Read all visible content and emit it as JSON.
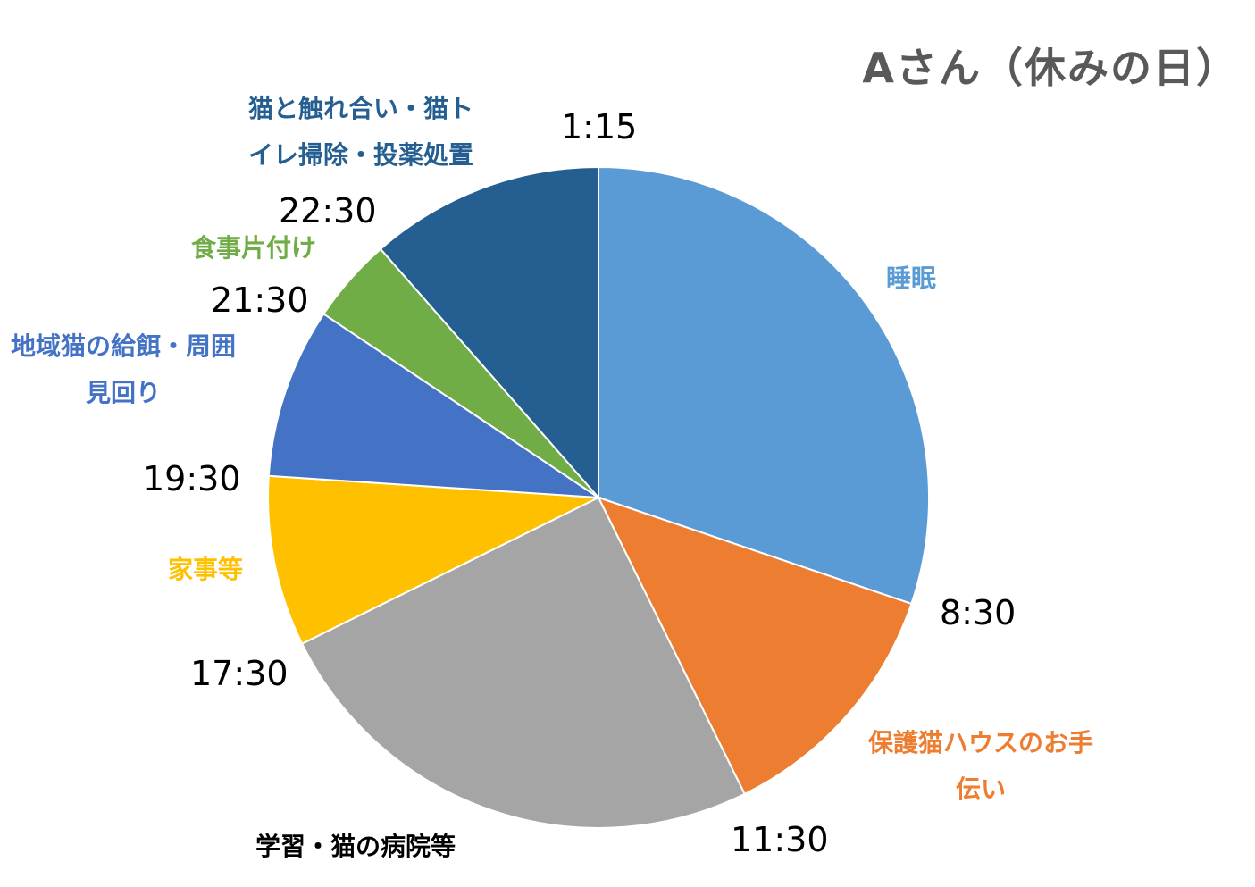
{
  "title": "Aさん（休みの日）",
  "chart_data": {
    "type": "pie",
    "title": "Aさん（休みの日）",
    "start_direction": "clockwise from 12 o'clock",
    "slices": [
      {
        "label_lines": [
          "睡眠"
        ],
        "start": "1:15",
        "end": "8:30",
        "value": 7.25,
        "color": "#5B9BD5"
      },
      {
        "label_lines": [
          "保護猫ハウスのお手",
          "伝い"
        ],
        "start": "8:30",
        "end": "11:30",
        "value": 3,
        "color": "#ED7D31"
      },
      {
        "label_lines": [
          "学習・猫の病院等"
        ],
        "start": "11:30",
        "end": "17:30",
        "value": 6,
        "color": "#A5A5A5"
      },
      {
        "label_lines": [
          "家事等"
        ],
        "start": "17:30",
        "end": "19:30",
        "value": 2,
        "color": "#FFC000"
      },
      {
        "label_lines": [
          "地域猫の給餌・周囲",
          "見回り"
        ],
        "start": "19:30",
        "end": "21:30",
        "value": 2,
        "color": "#4472C4"
      },
      {
        "label_lines": [
          "食事片付け"
        ],
        "start": "21:30",
        "end": "22:30",
        "value": 1,
        "color": "#70AD47"
      },
      {
        "label_lines": [
          "猫と触れ合い・猫ト",
          "イレ掃除・投薬処置"
        ],
        "start": "22:30",
        "end": "1:15",
        "value": 2.75,
        "color": "#255E91"
      }
    ],
    "label_colors": [
      "#5B9BD5",
      "#ED7D31",
      "#000000",
      "#FFC000",
      "#4472C4",
      "#70AD47",
      "#255E91"
    ],
    "time_labels": [
      "1:15",
      "8:30",
      "11:30",
      "17:30",
      "19:30",
      "21:30",
      "22:30"
    ]
  }
}
